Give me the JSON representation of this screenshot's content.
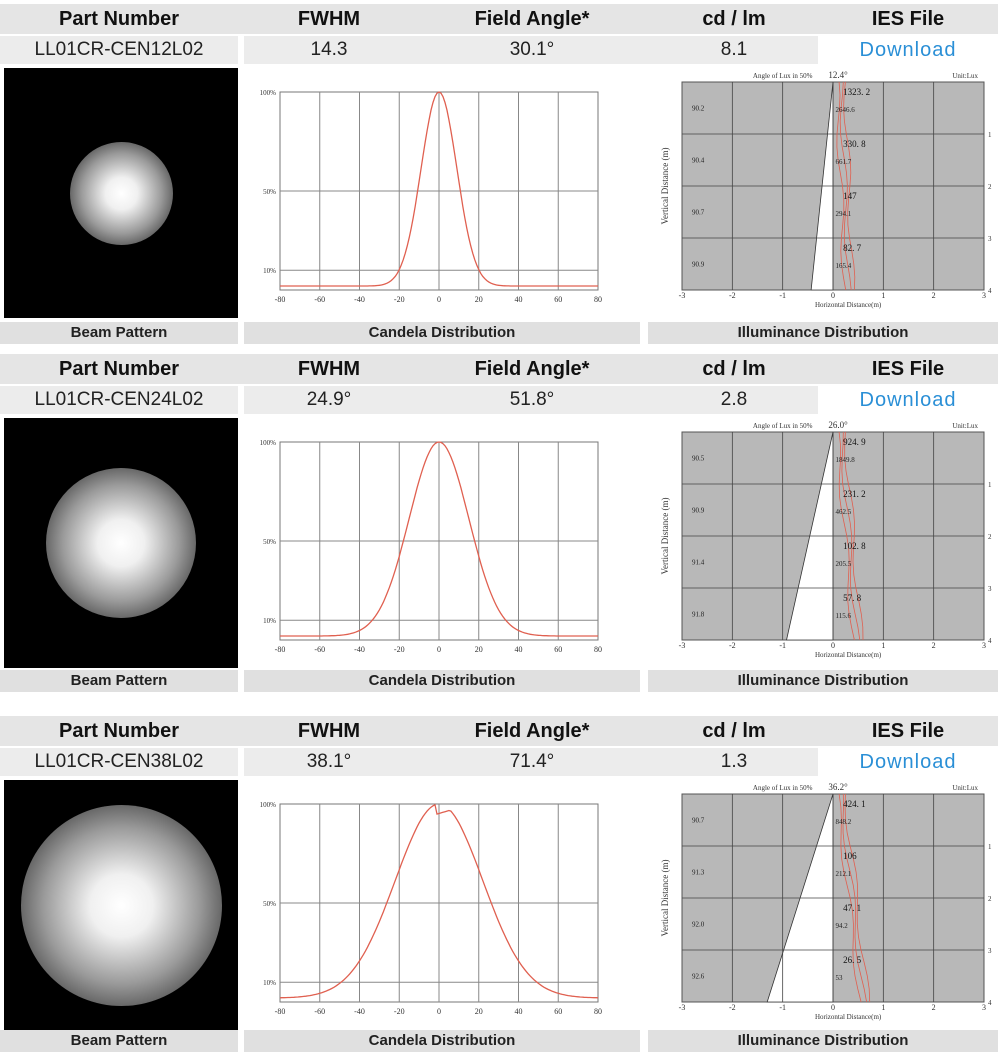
{
  "headers": {
    "part_number": "Part Number",
    "fwhm": "FWHM",
    "field_angle": "Field Angle*",
    "cd_lm": "cd / lm",
    "ies_file": "IES File"
  },
  "footers": {
    "beam": "Beam Pattern",
    "candela": "Candela Distribution",
    "illuminance": "Illuminance Distribution"
  },
  "colors": {
    "curve": "#e06050",
    "panel": "#b8b8b8",
    "link": "#2a8fd6"
  },
  "products": [
    {
      "part_number": "LL01CR-CEN12L02",
      "fwhm": "14.3",
      "field_angle": "30.1°",
      "cd_lm": "8.1",
      "ies_link": "Download",
      "beam_size": 0.22,
      "candela": {
        "y_ticks": [
          "100%",
          "50%",
          "10%"
        ],
        "x_ticks": [
          "-80",
          "-60",
          "-40",
          "-20",
          "0",
          "20",
          "40",
          "60",
          "80"
        ],
        "curve_width": 9
      },
      "illuminance": {
        "header_label": "Angle of Lux in 50%",
        "angle": "12.4°",
        "unit": "Unit:Lux",
        "ylabel": "Vertical Distance (m)",
        "xlabel": "Horizontal Distance(m)",
        "x_ticks": [
          "-3",
          "-2",
          "-1",
          "0",
          "1",
          "2",
          "3"
        ],
        "y_ticks": [
          "1",
          "2",
          "3",
          "4"
        ],
        "left_values": [
          "90.2",
          "90.4",
          "90.7",
          "90.9"
        ],
        "bold_values": [
          "1323. 2",
          "330. 8",
          "147",
          "82. 7"
        ],
        "small_values": [
          "2646.6",
          "661.7",
          "294.1",
          "165.4"
        ],
        "half_angle_deg": 6.2
      }
    },
    {
      "part_number": "LL01CR-CEN24L02",
      "fwhm": "24.9°",
      "field_angle": "51.8°",
      "cd_lm": "2.8",
      "ies_link": "Download",
      "beam_size": 0.32,
      "candela": {
        "y_ticks": [
          "100%",
          "50%",
          "10%"
        ],
        "x_ticks": [
          "-80",
          "-60",
          "-40",
          "-20",
          "0",
          "20",
          "40",
          "60",
          "80"
        ],
        "curve_width": 15
      },
      "illuminance": {
        "header_label": "Angle of Lux in 50%",
        "angle": "26.0°",
        "unit": "Unit:Lux",
        "ylabel": "Vertical Distance (m)",
        "xlabel": "Horizontal Distance(m)",
        "x_ticks": [
          "-3",
          "-2",
          "-1",
          "0",
          "1",
          "2",
          "3"
        ],
        "y_ticks": [
          "1",
          "2",
          "3",
          "4"
        ],
        "left_values": [
          "90.5",
          "90.9",
          "91.4",
          "91.8"
        ],
        "bold_values": [
          "924. 9",
          "231. 2",
          "102. 8",
          "57. 8"
        ],
        "small_values": [
          "1849.8",
          "462.5",
          "205.5",
          "115.6"
        ],
        "half_angle_deg": 13.0
      }
    },
    {
      "part_number": "LL01CR-CEN38L02",
      "fwhm": "38.1°",
      "field_angle": "71.4°",
      "cd_lm": "1.3",
      "ies_link": "Download",
      "beam_size": 0.43,
      "candela": {
        "y_ticks": [
          "100%",
          "50%",
          "10%"
        ],
        "x_ticks": [
          "-80",
          "-60",
          "-40",
          "-20",
          "0",
          "20",
          "40",
          "60",
          "80"
        ],
        "curve_width": 22
      },
      "illuminance": {
        "header_label": "Angle of Lux in 50%",
        "angle": "36.2°",
        "unit": "Unit:Lux",
        "ylabel": "Vertical Distance (m)",
        "xlabel": "Horizontal Distance(m)",
        "x_ticks": [
          "-3",
          "-2",
          "-1",
          "0",
          "1",
          "2",
          "3"
        ],
        "y_ticks": [
          "1",
          "2",
          "3",
          "4"
        ],
        "left_values": [
          "90.7",
          "91.3",
          "92.0",
          "92.6"
        ],
        "bold_values": [
          "424. 1",
          "106",
          "47. 1",
          "26. 5"
        ],
        "small_values": [
          "848.2",
          "212.1",
          "94.2",
          "53"
        ],
        "half_angle_deg": 18.1
      }
    }
  ]
}
